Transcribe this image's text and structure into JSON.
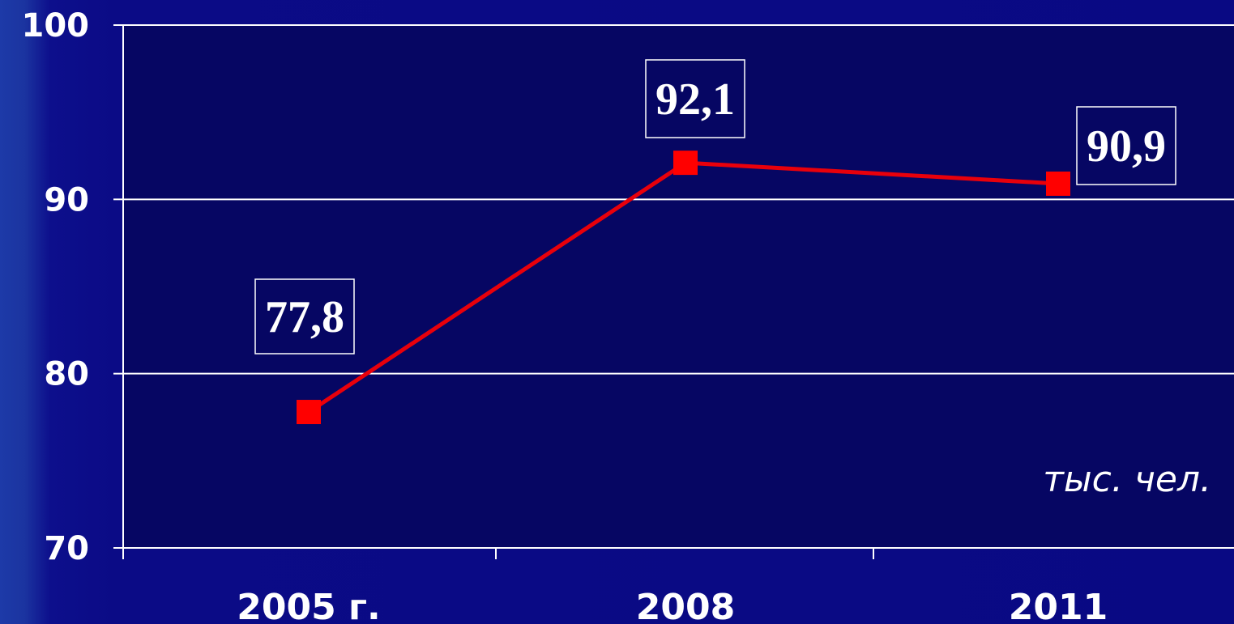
{
  "chart_data": {
    "type": "line",
    "categories": [
      "2005 г.",
      "2008",
      "2011"
    ],
    "series": [
      {
        "values": [
          77.8,
          92.1,
          90.9
        ],
        "data_labels": [
          "77,8",
          "92,1",
          "90,9"
        ],
        "color": "#ff0000"
      }
    ],
    "ylim": [
      70,
      100
    ],
    "yticks": [
      {
        "value": 70,
        "label": "70"
      },
      {
        "value": 80,
        "label": "80"
      },
      {
        "value": 90,
        "label": "90"
      },
      {
        "value": 100,
        "label": "100"
      }
    ],
    "unit_annotation": "тыс. чел.",
    "grid": true,
    "marker": "square",
    "colors": {
      "background": "#09097f",
      "plot_area": "#060663",
      "grid": "#ffffff",
      "text": "#ffffff",
      "line": "#e8000b",
      "marker": "#ff0000"
    }
  }
}
